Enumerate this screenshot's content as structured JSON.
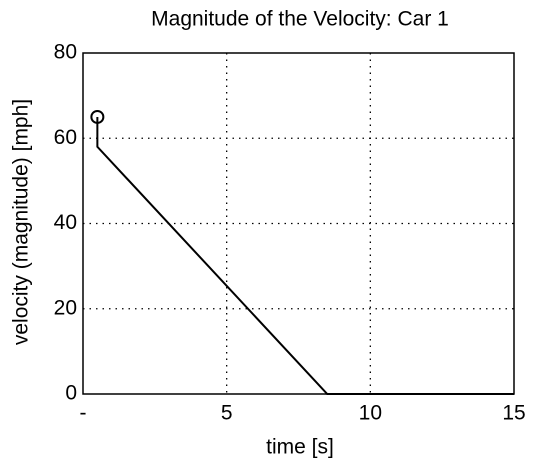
{
  "chart_data": {
    "type": "line",
    "title": "Magnitude of the Velocity: Car 1",
    "xlabel": "time [s]",
    "ylabel": "velocity (magnitude) [mph]",
    "series": [
      {
        "color": "#000000",
        "x": [
          0.5,
          0.5,
          8.5,
          15
        ],
        "values": [
          65,
          58,
          0,
          0
        ]
      }
    ],
    "start_point": {
      "x": 0.5,
      "y": 65
    },
    "xlim": [
      0,
      15
    ],
    "xticks": [
      {
        "value": 0,
        "label": "-"
      },
      5,
      10,
      15
    ],
    "ylim": [
      0,
      80
    ],
    "yticks": [
      0,
      20,
      40,
      60,
      80
    ],
    "grid": true
  }
}
